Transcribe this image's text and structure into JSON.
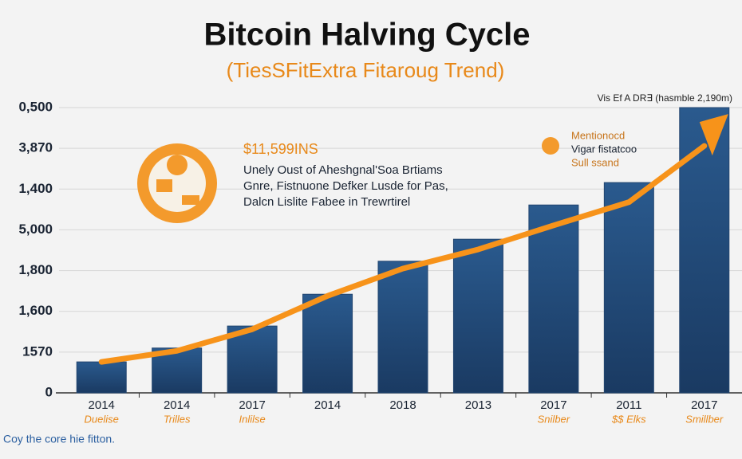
{
  "chart_data": {
    "type": "bar",
    "title": "Bitcoin Halving Cycle",
    "subtitle": "(TiesSFitExtra Fitaroug Trend)",
    "categories": [
      "2014",
      "2014",
      "2017",
      "2014",
      "2018",
      "2013",
      "2017",
      "2011",
      "2017"
    ],
    "category_sublabels": [
      "Duelise",
      "Trilles",
      "Inlilse",
      null,
      null,
      null,
      "Snilber",
      "$$ Elks",
      "Smillber"
    ],
    "series": [
      {
        "type": "bar",
        "color": "#22456f",
        "values": [
          0.76,
          1.1,
          1.64,
          2.42,
          3.23,
          3.77,
          4.61,
          5.16,
          7.0
        ]
      },
      {
        "type": "line",
        "color": "#f7931a",
        "values": [
          0.76,
          1.03,
          1.56,
          2.38,
          3.05,
          3.52,
          4.11,
          4.68,
          6.06
        ]
      }
    ],
    "ylim": [
      0,
      7
    ],
    "yticks": [
      0,
      {
        "value": 1,
        "label": "1570"
      },
      {
        "value": 2,
        "label": "1,600"
      },
      {
        "value": 3,
        "label": "1,800"
      },
      {
        "value": 4,
        "label": "5,000"
      },
      {
        "value": 5,
        "label": "1,400"
      },
      {
        "value": 6,
        "label": "3,870"
      },
      {
        "value": 7,
        "label": "0,500"
      }
    ],
    "grid": true,
    "annotations": {
      "top_right": "Vis Ef A DR∃ (hasmble 2,190m)",
      "center_price": "$11,599INS",
      "center_lines": [
        "Unely Oust of Aheshgnal'Soa Brtiams",
        "Gnre, Fistnuone Defker Lusde for Pas,",
        "Dalcn Lislite Fabee in Trewrtirel"
      ],
      "right_lines": [
        "Mentionocd",
        "Vigar fistatcoo",
        "Sull ssand"
      ]
    },
    "footer": "Coy the core hie fitton."
  }
}
